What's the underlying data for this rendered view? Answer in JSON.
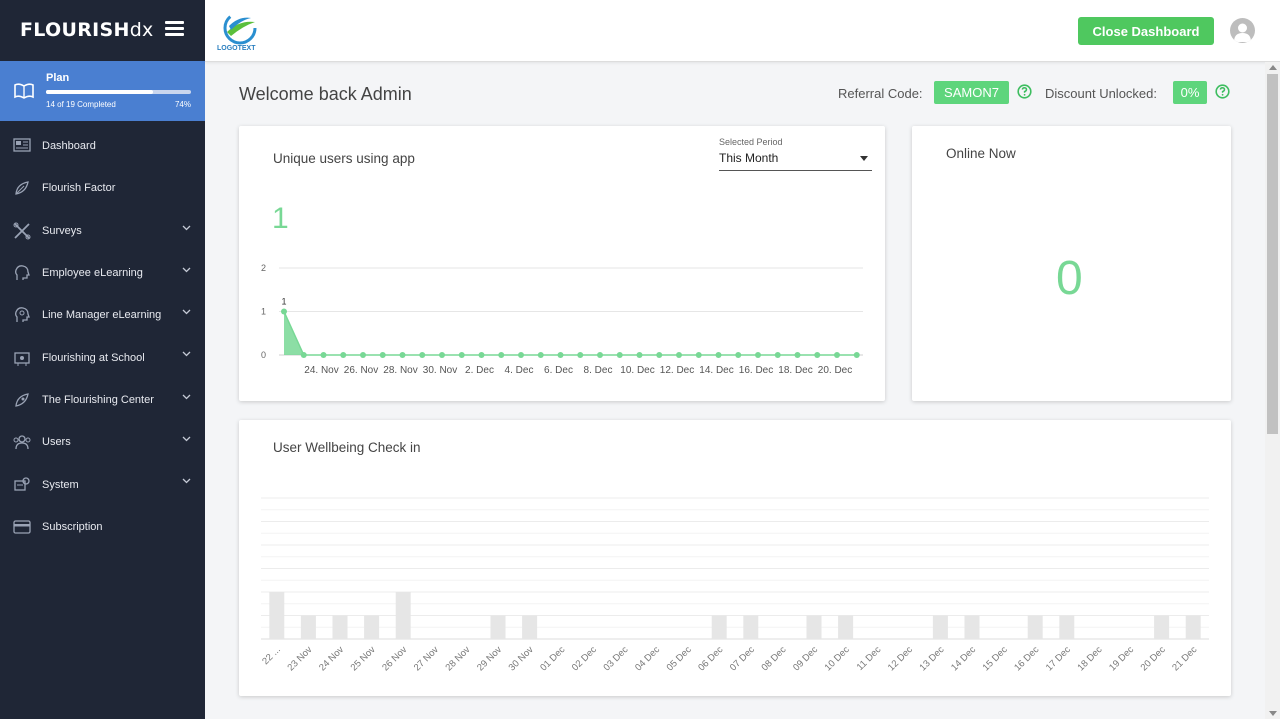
{
  "brand": {
    "main": "FLOURISH",
    "sub": "dx"
  },
  "plan": {
    "title": "Plan",
    "completed": "14 of 19 Completed",
    "percent": "74%",
    "progress": 0.74
  },
  "nav": [
    {
      "label": "Dashboard",
      "icon": "dashboard-icon",
      "chevron": false
    },
    {
      "label": "Flourish Factor",
      "icon": "leaf-icon",
      "chevron": false
    },
    {
      "label": "Surveys",
      "icon": "tools-icon",
      "chevron": true
    },
    {
      "label": "Employee eLearning",
      "icon": "head-icon",
      "chevron": true
    },
    {
      "label": "Line Manager eLearning",
      "icon": "head-gear-icon",
      "chevron": true
    },
    {
      "label": "Flourishing at School",
      "icon": "school-icon",
      "chevron": true
    },
    {
      "label": "The Flourishing Center",
      "icon": "center-icon",
      "chevron": true
    },
    {
      "label": "Users",
      "icon": "users-icon",
      "chevron": true
    },
    {
      "label": "System",
      "icon": "system-icon",
      "chevron": true
    },
    {
      "label": "Subscription",
      "icon": "card-icon",
      "chevron": false
    }
  ],
  "header": {
    "logo_text": "LOGOTEXT",
    "close_label": "Close Dashboard"
  },
  "welcome": {
    "title": "Welcome back Admin",
    "referral_label": "Referral Code:",
    "referral_code": "SAMON7",
    "discount_label": "Discount Unlocked:",
    "discount_value": "0%"
  },
  "colors": {
    "accent_green": "#5ed57c",
    "chart_green": "#78d895",
    "sidebar": "#1f2636",
    "plan_blue": "#4a7fd1",
    "button_green": "#4fc85f",
    "bar_gray": "#e6e6e6"
  },
  "unique_users": {
    "title": "Unique users using app",
    "total": "1",
    "period_label": "Selected Period",
    "period_value": "This Month"
  },
  "online": {
    "title": "Online Now",
    "value": "0"
  },
  "wellbeing": {
    "title": "User Wellbeing Check in"
  },
  "chart_data": [
    {
      "type": "area",
      "title": "Unique users using app",
      "ylim": [
        0,
        2
      ],
      "yticks": [
        0,
        1,
        2
      ],
      "x_tick_labels": [
        "24. Nov",
        "26. Nov",
        "28. Nov",
        "30. Nov",
        "2. Dec",
        "4. Dec",
        "6. Dec",
        "8. Dec",
        "10. Dec",
        "12. Dec",
        "14. Dec",
        "16. Dec",
        "18. Dec",
        "20. Dec"
      ],
      "x": [
        "22. Nov",
        "23. Nov",
        "24. Nov",
        "25. Nov",
        "26. Nov",
        "27. Nov",
        "28. Nov",
        "29. Nov",
        "30. Nov",
        "1. Dec",
        "2. Dec",
        "3. Dec",
        "4. Dec",
        "5. Dec",
        "6. Dec",
        "7. Dec",
        "8. Dec",
        "9. Dec",
        "10. Dec",
        "11. Dec",
        "12. Dec",
        "13. Dec",
        "14. Dec",
        "15. Dec",
        "16. Dec",
        "17. Dec",
        "18. Dec",
        "19. Dec",
        "20. Dec",
        "21. Dec"
      ],
      "values": [
        1,
        0,
        0,
        0,
        0,
        0,
        0,
        0,
        0,
        0,
        0,
        0,
        0,
        0,
        0,
        0,
        0,
        0,
        0,
        0,
        0,
        0,
        0,
        0,
        0,
        0,
        0,
        0,
        0,
        0
      ],
      "data_labels": [
        {
          "index": 0,
          "text": "1"
        }
      ],
      "grid": true
    },
    {
      "type": "bar",
      "title": "User Wellbeing Check in",
      "categories": [
        "22 ...",
        "23 Nov",
        "24 Nov",
        "25 Nov",
        "26 Nov",
        "27 Nov",
        "28 Nov",
        "29 Nov",
        "30 Nov",
        "01 Dec",
        "02 Dec",
        "03 Dec",
        "04 Dec",
        "05 Dec",
        "06 Dec",
        "07 Dec",
        "08 Dec",
        "09 Dec",
        "10 Dec",
        "11 Dec",
        "12 Dec",
        "13 Dec",
        "14 Dec",
        "15 Dec",
        "16 Dec",
        "17 Dec",
        "18 Dec",
        "19 Dec",
        "20 Dec",
        "21 Dec"
      ],
      "values": [
        2,
        1,
        1,
        1,
        2,
        0,
        0,
        1,
        1,
        0,
        0,
        0,
        0,
        0,
        1,
        1,
        0,
        1,
        1,
        0,
        0,
        1,
        1,
        0,
        1,
        1,
        0,
        0,
        1,
        1
      ],
      "ylim": [
        0,
        6
      ],
      "grid": true
    }
  ]
}
